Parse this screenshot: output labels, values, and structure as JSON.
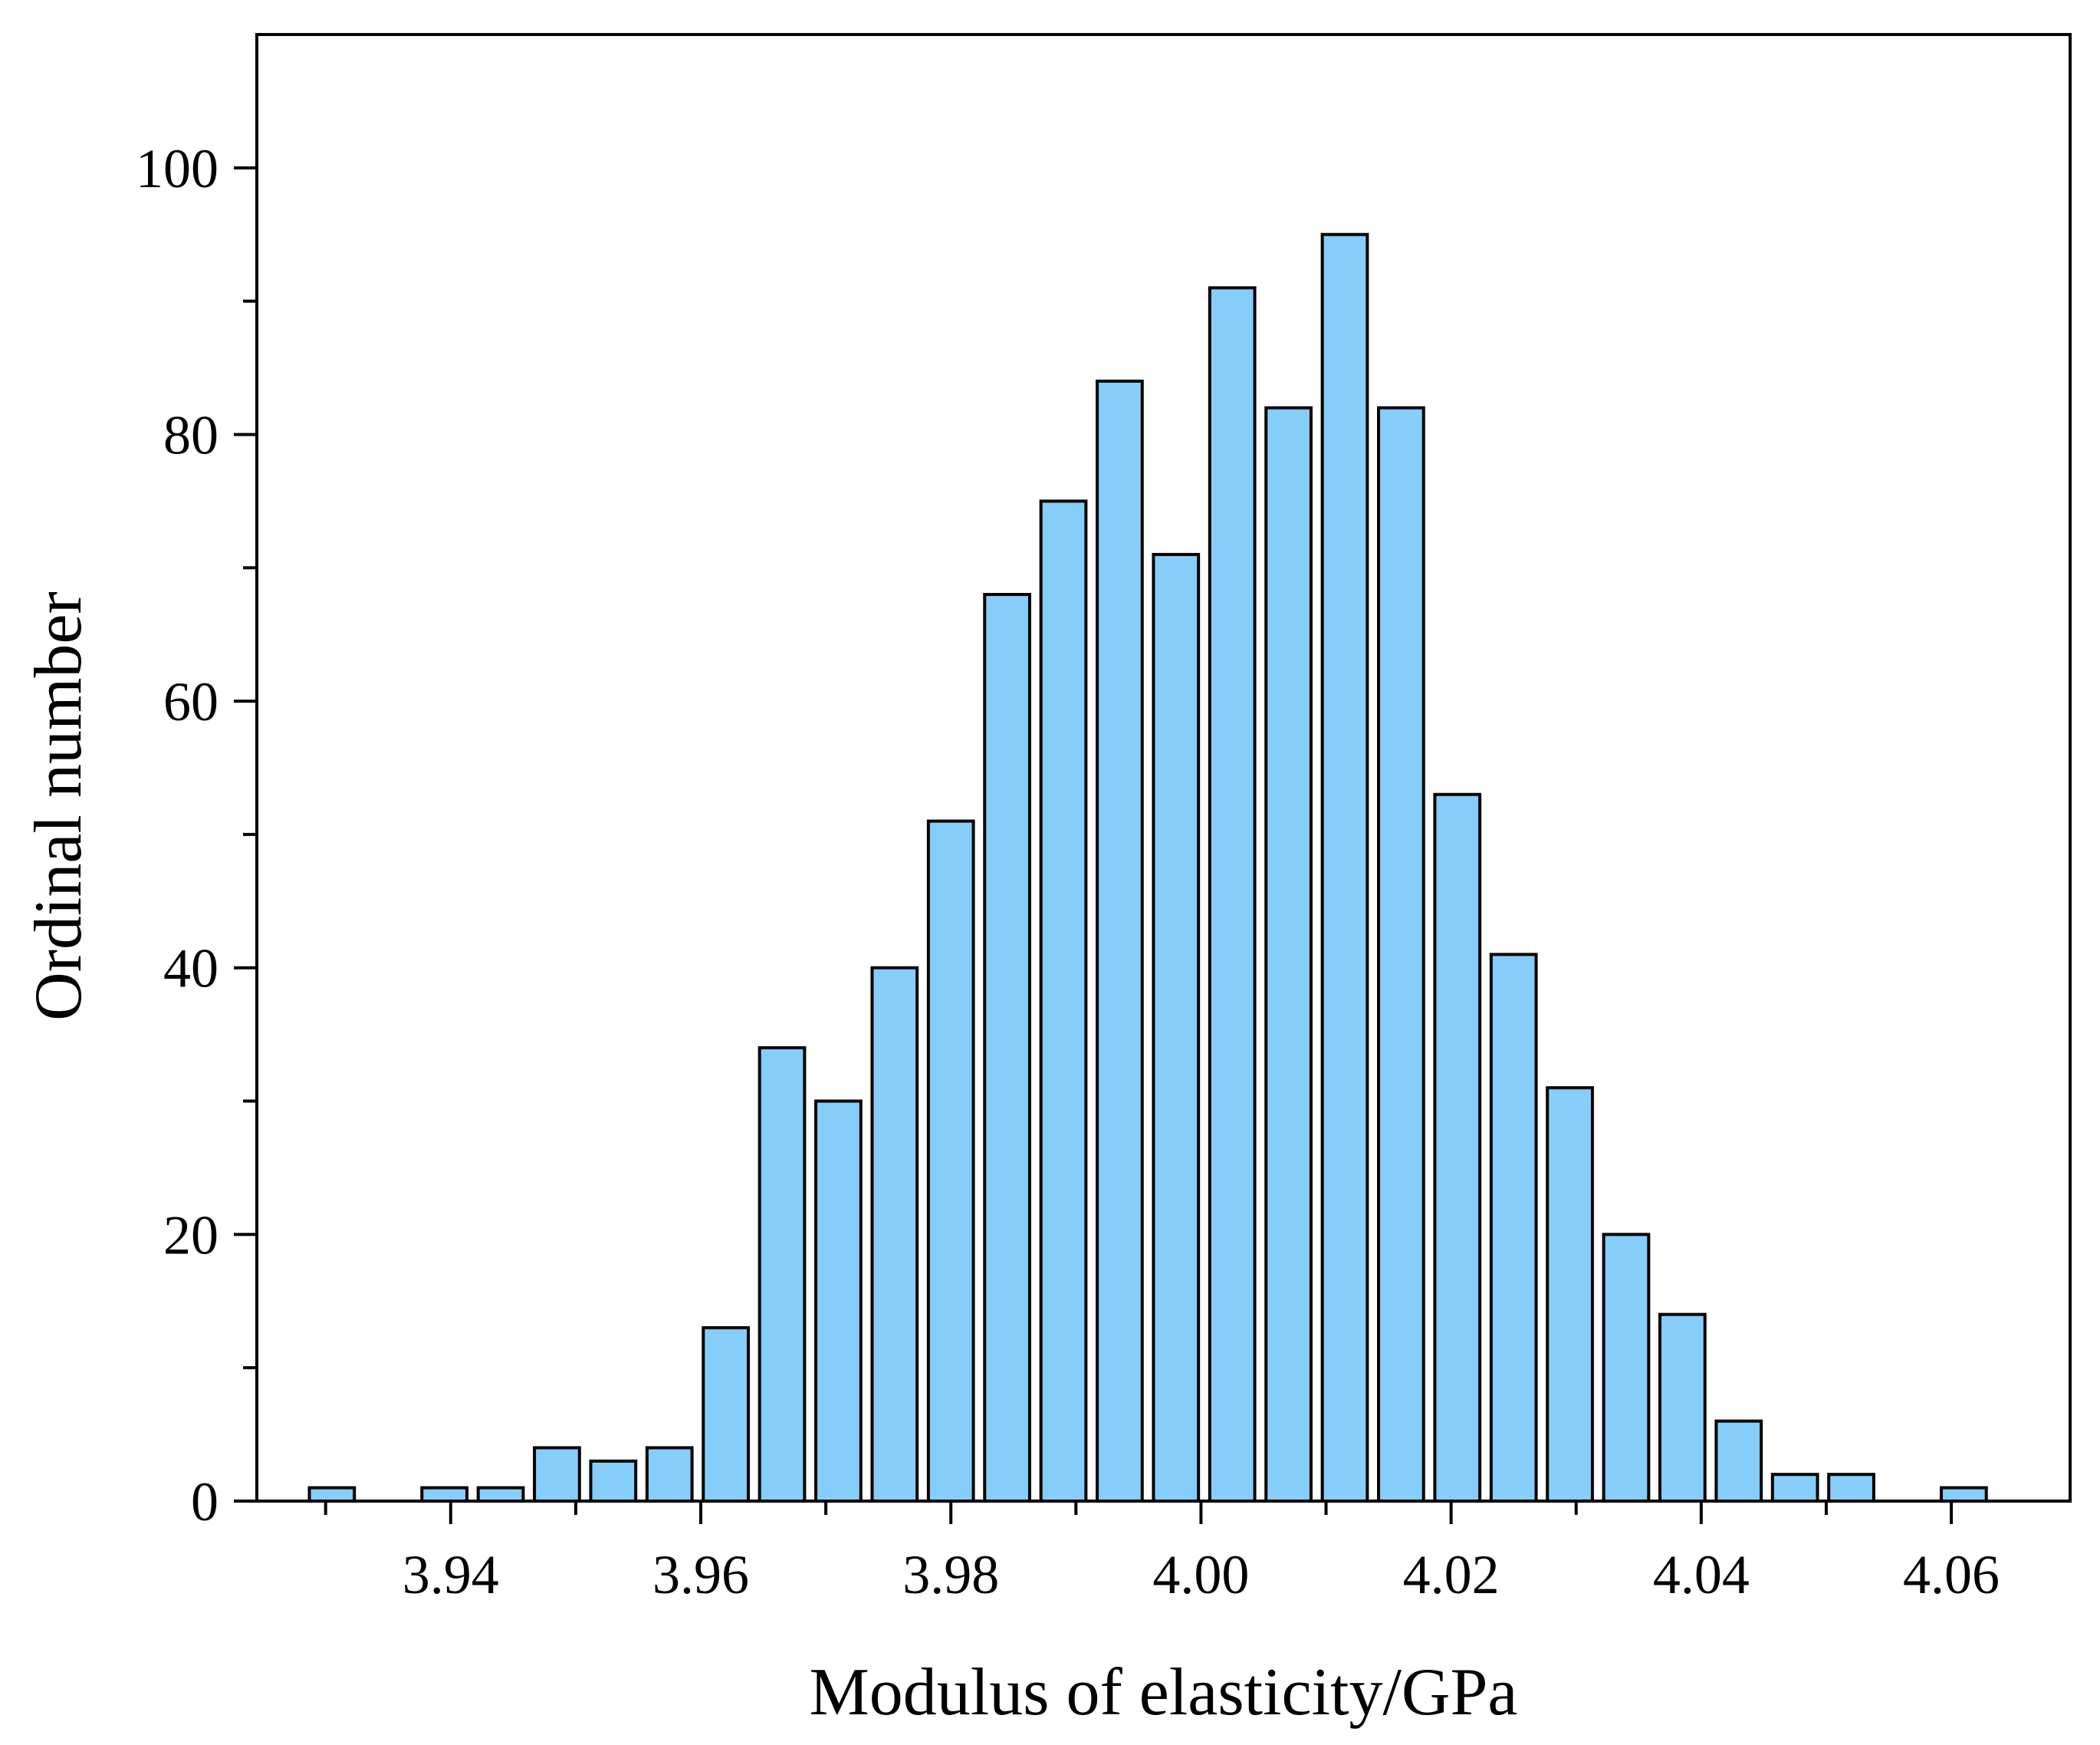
{
  "chart_data": {
    "type": "bar",
    "title": "",
    "xlabel": "Modulus of elasticity/GPa",
    "ylabel": "Ordinal number",
    "xlim": [
      3.9245,
      4.0695
    ],
    "ylim": [
      0,
      110
    ],
    "x_ticks": [
      3.94,
      3.96,
      3.98,
      4.0,
      4.02,
      4.04,
      4.06
    ],
    "x_tick_labels": [
      "3.94",
      "3.96",
      "3.98",
      "4.00",
      "4.02",
      "4.04",
      "4.06"
    ],
    "x_minor_ticks": [
      3.93,
      3.95,
      3.97,
      3.99,
      4.01,
      4.03,
      4.05
    ],
    "y_ticks": [
      0,
      20,
      40,
      60,
      80,
      100
    ],
    "y_tick_labels": [
      "0",
      "20",
      "40",
      "60",
      "80",
      "100"
    ],
    "y_minor_ticks": [
      10,
      30,
      50,
      70,
      90
    ],
    "bin_width": 0.0045,
    "bar_width_fraction": 0.8,
    "grid": false,
    "bar_color": "#86cefa",
    "bars": [
      {
        "x": 3.9305,
        "value": 1
      },
      {
        "x": 3.935,
        "value": 0
      },
      {
        "x": 3.9395,
        "value": 1
      },
      {
        "x": 3.944,
        "value": 1
      },
      {
        "x": 3.9485,
        "value": 4
      },
      {
        "x": 3.953,
        "value": 3
      },
      {
        "x": 3.9575,
        "value": 4
      },
      {
        "x": 3.962,
        "value": 13
      },
      {
        "x": 3.9665,
        "value": 34
      },
      {
        "x": 3.971,
        "value": 30
      },
      {
        "x": 3.9755,
        "value": 40
      },
      {
        "x": 3.98,
        "value": 51
      },
      {
        "x": 3.9845,
        "value": 68
      },
      {
        "x": 3.989,
        "value": 75
      },
      {
        "x": 3.9935,
        "value": 84
      },
      {
        "x": 3.998,
        "value": 71
      },
      {
        "x": 4.0025,
        "value": 91
      },
      {
        "x": 4.007,
        "value": 82
      },
      {
        "x": 4.0115,
        "value": 95
      },
      {
        "x": 4.016,
        "value": 82
      },
      {
        "x": 4.0205,
        "value": 53
      },
      {
        "x": 4.025,
        "value": 41
      },
      {
        "x": 4.0295,
        "value": 31
      },
      {
        "x": 4.034,
        "value": 20
      },
      {
        "x": 4.0385,
        "value": 14
      },
      {
        "x": 4.043,
        "value": 6
      },
      {
        "x": 4.0475,
        "value": 2
      },
      {
        "x": 4.052,
        "value": 2
      },
      {
        "x": 4.0565,
        "value": 0
      },
      {
        "x": 4.061,
        "value": 1
      }
    ]
  }
}
